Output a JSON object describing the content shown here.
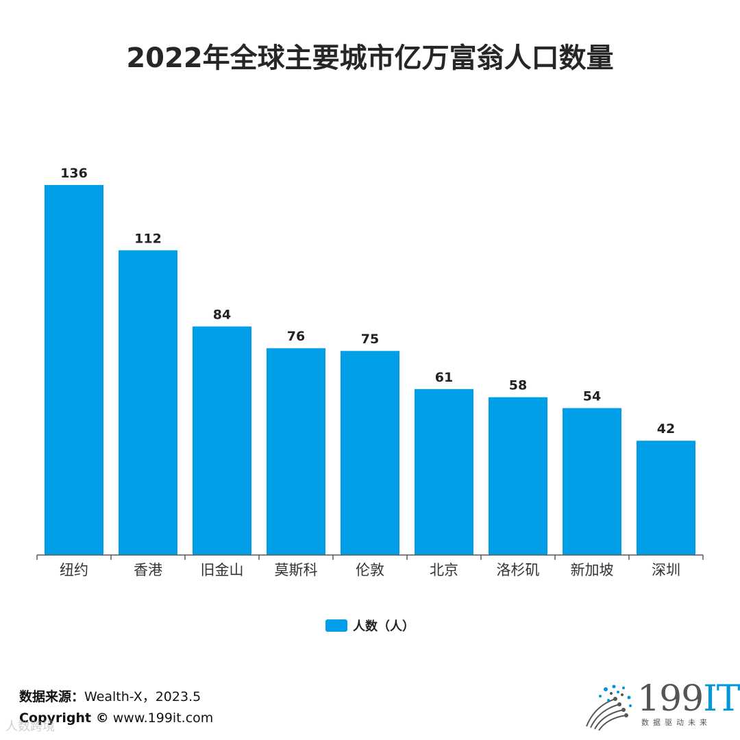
{
  "chart_data": {
    "type": "bar",
    "title": "2022年全球主要城市亿万富翁人口数量",
    "categories": [
      "纽约",
      "香港",
      "旧金山",
      "莫斯科",
      "伦敦",
      "北京",
      "洛杉矶",
      "新加坡",
      "深圳"
    ],
    "series": [
      {
        "name": "人数（人）",
        "values": [
          136,
          112,
          84,
          76,
          75,
          61,
          58,
          54,
          42
        ],
        "color": "#009FE8"
      }
    ],
    "ylim": [
      0,
      136
    ],
    "xlabel": "",
    "ylabel": "",
    "grid": false,
    "legend": "bottom-center"
  },
  "footer": {
    "source_label": "数据来源：",
    "source_value": "Wealth-X，2023.5",
    "copyright_label": "Copyright ©",
    "copyright_url": "www.199it.com",
    "watermark": "人数跨境"
  },
  "logo": {
    "main_prefix": "199",
    "main_suffix": "IT",
    "subtitle": "数据驱动未来"
  },
  "colors": {
    "bar": "#009FE8",
    "axis": "#595959",
    "label": "#222222"
  }
}
